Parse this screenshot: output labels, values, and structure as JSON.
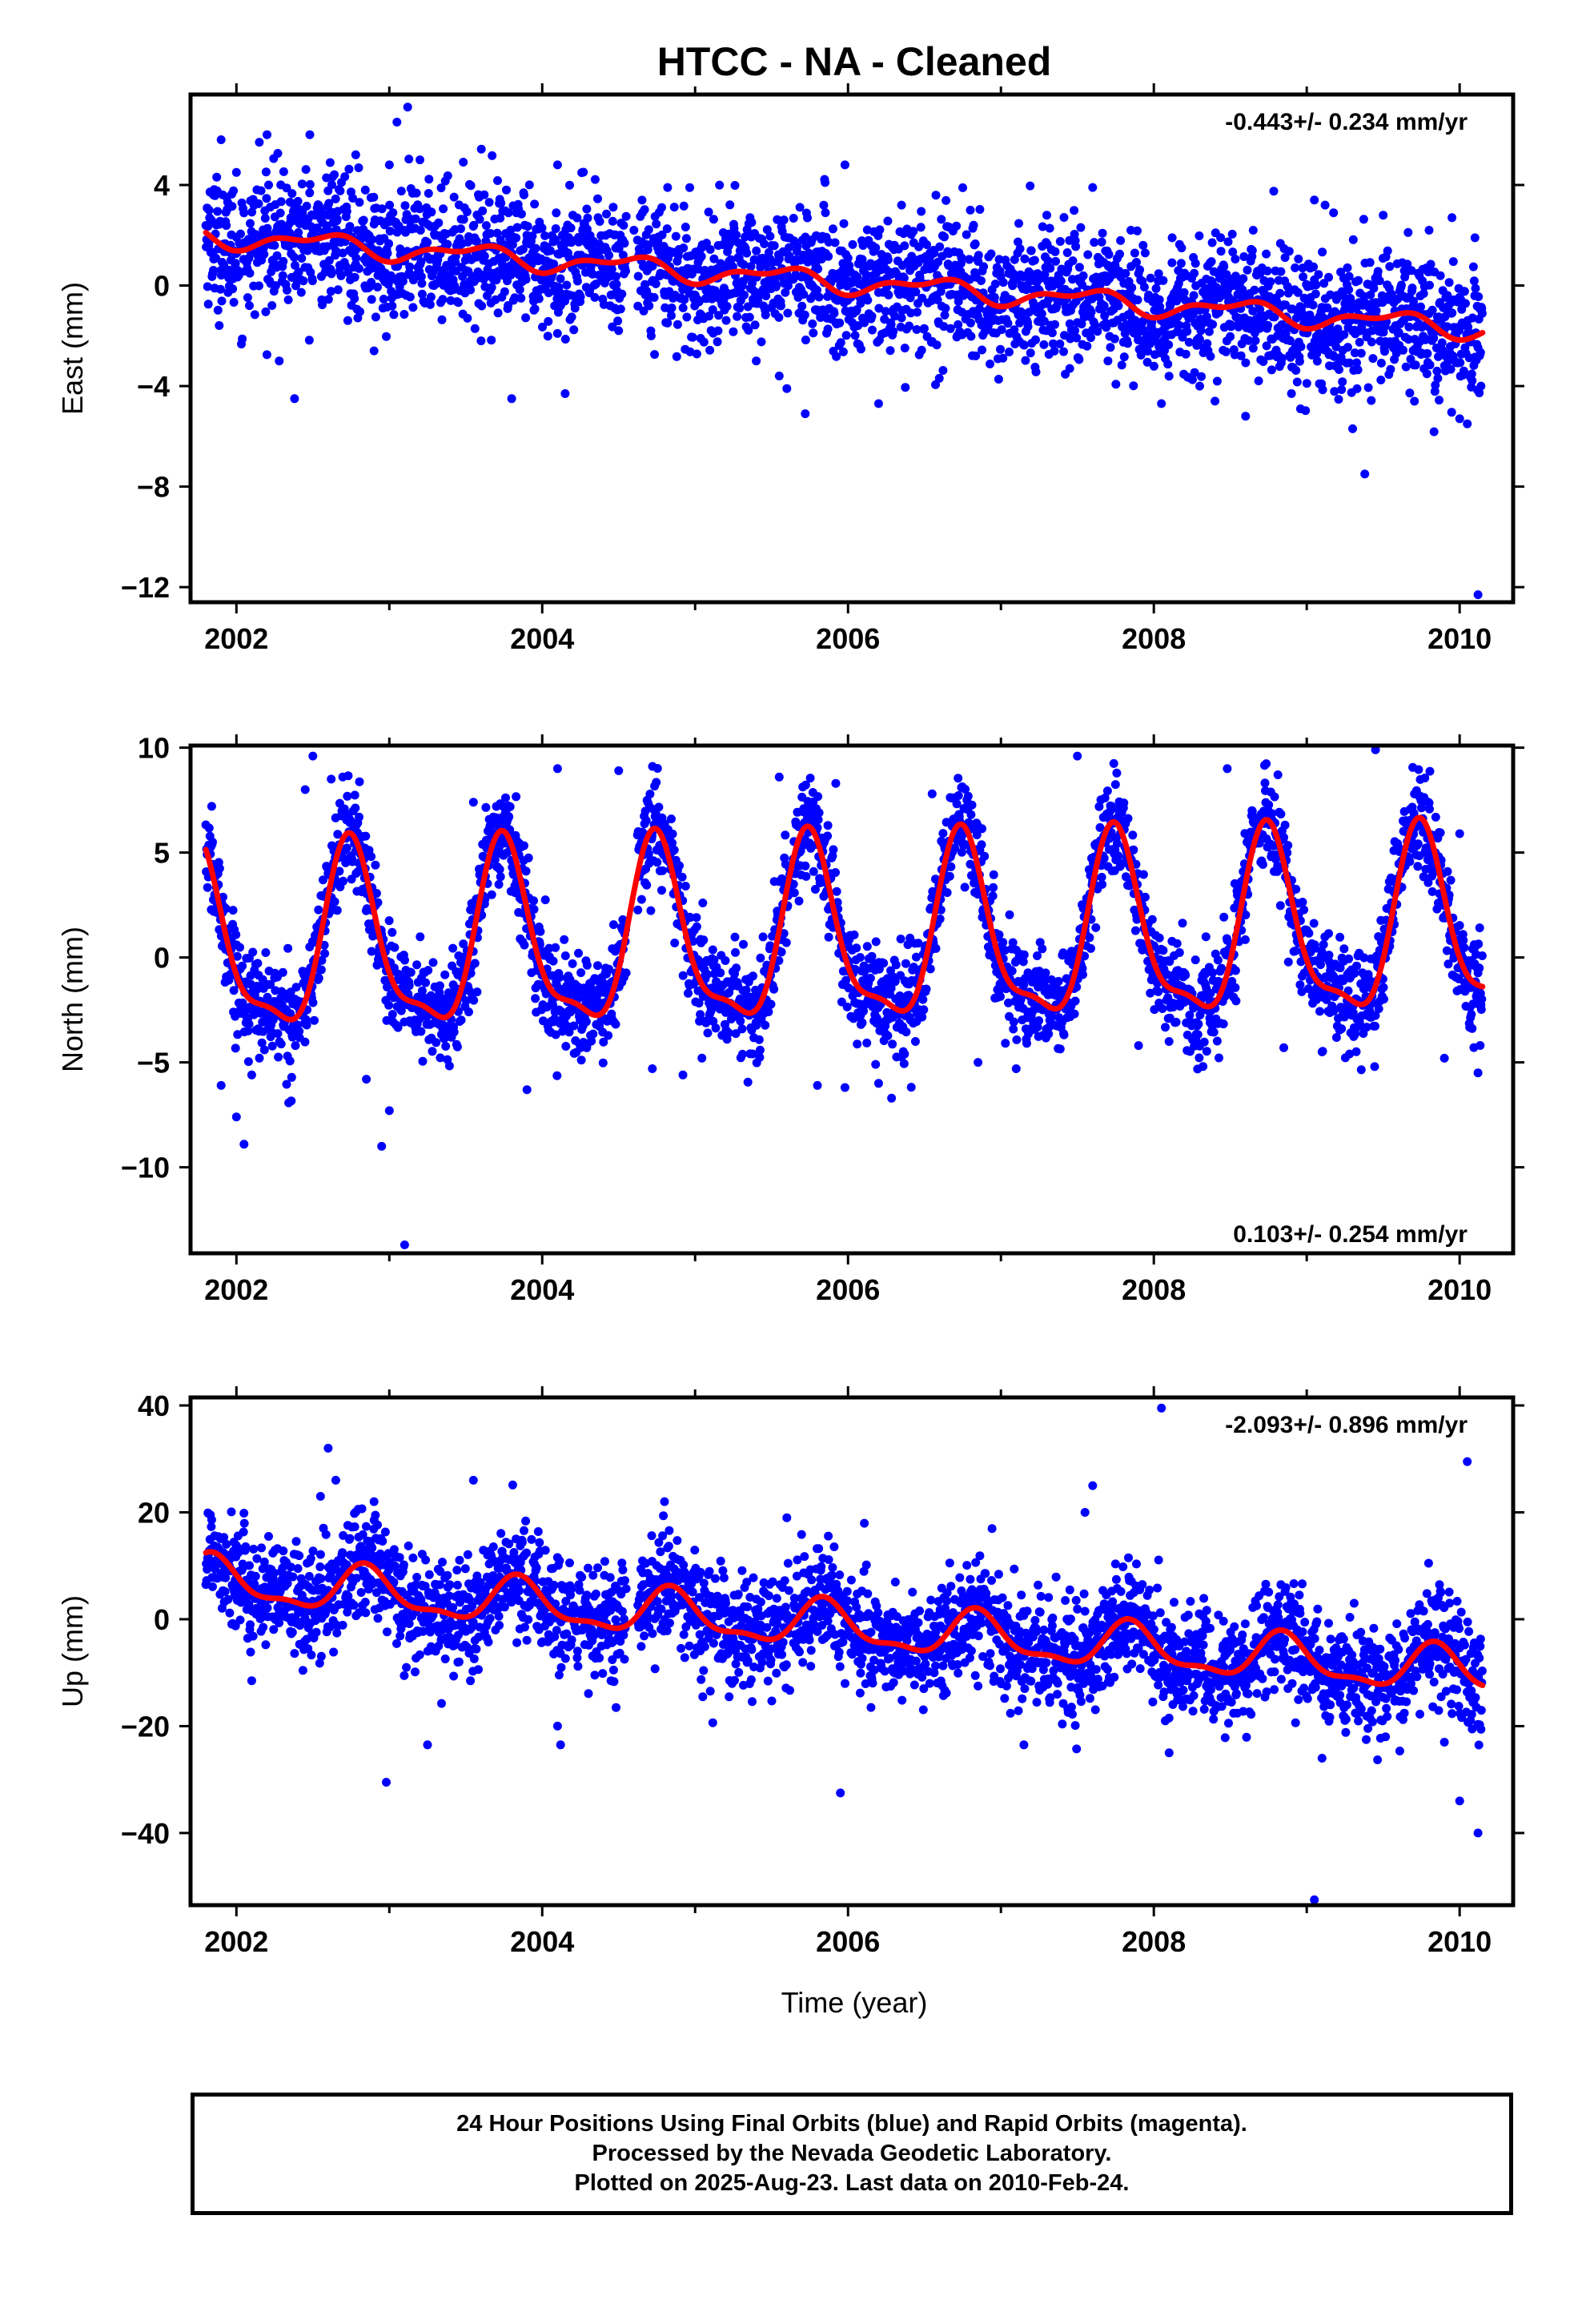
{
  "title": "HTCC  - NA - Cleaned",
  "chart_data": [
    {
      "type": "scatter",
      "ylabel": "East (mm)",
      "rate_text": "-0.443+/- 0.234 mm/yr",
      "rate_pos": "top-right",
      "xlim": [
        2001.7,
        2010.35
      ],
      "ylim": [
        -12.6,
        7.6
      ],
      "xticks": [
        2002,
        2004,
        2006,
        2008,
        2010
      ],
      "yticks": [
        4,
        0,
        -4,
        -8,
        -12
      ],
      "ytick_labels": [
        "4",
        "0",
        "−4",
        "−8",
        "−12"
      ],
      "point_color": "#0000ff",
      "model_color": "#ff0000",
      "model": {
        "start": 2001.8,
        "end": 2010.15,
        "offset": 1.9,
        "trend": -0.443,
        "annual_amp": 0.35,
        "annual_phase": 0.3,
        "semi_amp": 0.2,
        "semi_phase": 0.1
      },
      "points": [
        [
          2001.85,
          3.6
        ],
        [
          2001.9,
          5.8
        ],
        [
          2001.95,
          0.3
        ],
        [
          2002.0,
          4.5
        ],
        [
          2002.15,
          5.7
        ],
        [
          2002.2,
          6.0
        ],
        [
          2002.28,
          -3.0
        ],
        [
          2002.38,
          -4.5
        ],
        [
          2002.48,
          6.0
        ],
        [
          2002.6,
          2.8
        ],
        [
          2002.78,
          5.2
        ],
        [
          2002.88,
          3.5
        ],
        [
          2002.9,
          -2.6
        ],
        [
          2003.0,
          4.8
        ],
        [
          2003.05,
          6.5
        ],
        [
          2003.12,
          7.1
        ],
        [
          2003.2,
          5.0
        ],
        [
          2003.25,
          3.0
        ],
        [
          2003.6,
          -2.2
        ],
        [
          2003.8,
          -4.5
        ],
        [
          2004.1,
          4.8
        ],
        [
          2004.15,
          -4.3
        ],
        [
          2004.2,
          2.8
        ],
        [
          2004.6,
          2.2
        ],
        [
          2004.82,
          3.9
        ],
        [
          2005.15,
          -1.8
        ],
        [
          2005.4,
          -3.0
        ],
        [
          2005.55,
          -3.6
        ],
        [
          2005.6,
          -4.1
        ],
        [
          2005.72,
          -5.1
        ],
        [
          2005.85,
          4.1
        ],
        [
          2005.98,
          4.8
        ],
        [
          2006.2,
          -4.7
        ],
        [
          2006.35,
          3.2
        ],
        [
          2006.8,
          3.0
        ],
        [
          2007.3,
          2.8
        ],
        [
          2007.45,
          -3.3
        ],
        [
          2007.6,
          3.9
        ],
        [
          2007.7,
          -3.0
        ],
        [
          2007.85,
          2.2
        ],
        [
          2008.05,
          -4.7
        ],
        [
          2008.12,
          1.9
        ],
        [
          2008.3,
          -4.0
        ],
        [
          2008.4,
          -4.6
        ],
        [
          2008.6,
          -5.2
        ],
        [
          2008.65,
          2.2
        ],
        [
          2008.9,
          -4.3
        ],
        [
          2009.05,
          3.4
        ],
        [
          2009.12,
          3.2
        ],
        [
          2009.3,
          -5.7
        ],
        [
          2009.38,
          -7.5
        ],
        [
          2009.5,
          2.8
        ],
        [
          2009.8,
          2.2
        ],
        [
          2009.95,
          2.7
        ],
        [
          2010.0,
          -5.3
        ],
        [
          2010.05,
          -5.5
        ],
        [
          2010.1,
          1.9
        ],
        [
          2010.12,
          -12.3
        ]
      ]
    },
    {
      "type": "scatter",
      "ylabel": "North (mm)",
      "rate_text": "0.103+/- 0.254 mm/yr",
      "rate_pos": "bottom-right",
      "xlim": [
        2001.7,
        2010.35
      ],
      "ylim": [
        -14.1,
        10.1
      ],
      "xticks": [
        2002,
        2004,
        2006,
        2008,
        2010
      ],
      "yticks": [
        10,
        5,
        0,
        -5,
        -10
      ],
      "ytick_labels": [
        "10",
        "5",
        "0",
        "−5",
        "−10"
      ],
      "point_color": "#0000ff",
      "model_color": "#ff0000",
      "model": {
        "start": 2001.8,
        "end": 2010.15,
        "offset": 0.4,
        "trend": 0.103,
        "annual_amp": 4.2,
        "annual_phase": 0.5,
        "semi_amp": 1.3,
        "semi_phase": 0.6
      },
      "points": [
        [
          2001.9,
          -6.1
        ],
        [
          2002.0,
          -7.6
        ],
        [
          2002.05,
          -8.9
        ],
        [
          2002.1,
          -5.6
        ],
        [
          2002.45,
          8.0
        ],
        [
          2002.5,
          9.6
        ],
        [
          2002.62,
          8.5
        ],
        [
          2002.85,
          -5.8
        ],
        [
          2002.95,
          -9.0
        ],
        [
          2003.0,
          -7.3
        ],
        [
          2003.1,
          -13.7
        ],
        [
          2003.55,
          7.4
        ],
        [
          2003.7,
          7.2
        ],
        [
          2003.9,
          -6.3
        ],
        [
          2004.1,
          9.0
        ],
        [
          2004.5,
          8.9
        ],
        [
          2004.72,
          -5.3
        ],
        [
          2004.92,
          -5.6
        ],
        [
          2005.05,
          2.6
        ],
        [
          2005.55,
          8.6
        ],
        [
          2005.8,
          -6.1
        ],
        [
          2005.92,
          8.3
        ],
        [
          2005.98,
          -6.2
        ],
        [
          2006.2,
          -6.0
        ],
        [
          2006.55,
          7.8
        ],
        [
          2006.85,
          -5.0
        ],
        [
          2007.1,
          -5.3
        ],
        [
          2007.5,
          9.6
        ],
        [
          2007.9,
          -4.2
        ],
        [
          2008.48,
          9.0
        ],
        [
          2008.85,
          -4.3
        ],
        [
          2009.1,
          -4.5
        ],
        [
          2009.28,
          -4.6
        ],
        [
          2009.45,
          9.9
        ],
        [
          2009.9,
          -4.8
        ],
        [
          2010.0,
          5.9
        ],
        [
          2010.12,
          -5.5
        ]
      ]
    },
    {
      "type": "scatter",
      "ylabel": "Up (mm)",
      "rate_text": "-2.093+/- 0.896 mm/yr",
      "rate_pos": "top-right",
      "xlim": [
        2001.7,
        2010.35
      ],
      "ylim": [
        -53.5,
        41.5
      ],
      "xticks": [
        2002,
        2004,
        2006,
        2008,
        2010
      ],
      "yticks": [
        40,
        20,
        0,
        -20,
        -40
      ],
      "ytick_labels": [
        "40",
        "20",
        "0",
        "−20",
        "−40"
      ],
      "point_color": "#0000ff",
      "model_color": "#ff0000",
      "model": {
        "start": 2001.8,
        "end": 2010.15,
        "offset": 6.8,
        "trend": -2.093,
        "annual_amp": 4.0,
        "annual_phase": 0.6,
        "semi_amp": 1.5,
        "semi_phase": 0.2
      },
      "points": [
        [
          2002.1,
          -11.5
        ],
        [
          2002.55,
          23.0
        ],
        [
          2002.6,
          32.0
        ],
        [
          2002.65,
          26.0
        ],
        [
          2002.9,
          22.0
        ],
        [
          2002.98,
          -30.5
        ],
        [
          2003.25,
          -23.5
        ],
        [
          2003.55,
          26.0
        ],
        [
          2004.1,
          -20.0
        ],
        [
          2004.12,
          -23.5
        ],
        [
          2004.8,
          22.0
        ],
        [
          2005.05,
          -14.5
        ],
        [
          2005.6,
          19.0
        ],
        [
          2005.95,
          -32.5
        ],
        [
          2006.15,
          -16.5
        ],
        [
          2006.85,
          -12.5
        ],
        [
          2007.15,
          -23.5
        ],
        [
          2007.6,
          25.0
        ],
        [
          2007.55,
          20.0
        ],
        [
          2008.05,
          39.5
        ],
        [
          2008.1,
          -25.0
        ],
        [
          2009.05,
          -52.5
        ],
        [
          2009.1,
          -26.0
        ],
        [
          2009.9,
          -23.0
        ],
        [
          2010.0,
          -34.0
        ],
        [
          2010.05,
          29.5
        ],
        [
          2010.12,
          -40.0
        ]
      ]
    }
  ],
  "xlabel": "Time (year)",
  "footer": {
    "line1": "24 Hour Positions Using Final Orbits (blue) and Rapid Orbits (magenta).",
    "line2": "Processed by the Nevada Geodetic Laboratory.",
    "line3": "Plotted on 2025-Aug-23. Last data on 2010-Feb-24."
  }
}
